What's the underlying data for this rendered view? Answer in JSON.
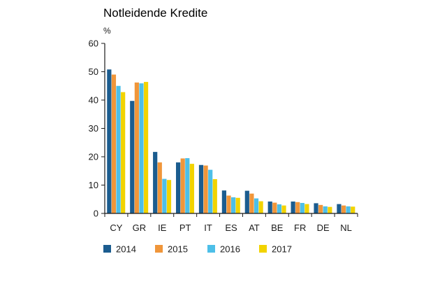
{
  "chart_data": {
    "type": "bar",
    "title": "Notleidende Kredite",
    "ylabel": "%",
    "xlabel": "",
    "ylim": [
      0,
      60
    ],
    "yticks": [
      0,
      10,
      20,
      30,
      40,
      50,
      60
    ],
    "grid": false,
    "legend_position": "bottom-left",
    "categories": [
      "CY",
      "GR",
      "IE",
      "PT",
      "IT",
      "ES",
      "AT",
      "BE",
      "FR",
      "DE",
      "NL"
    ],
    "series": [
      {
        "name": "2014",
        "color": "#1b5c8f",
        "values": [
          50.8,
          39.7,
          21.7,
          18.0,
          17.1,
          8.1,
          8.0,
          4.2,
          4.2,
          3.6,
          3.3
        ]
      },
      {
        "name": "2015",
        "color": "#f0963a",
        "values": [
          49.0,
          46.2,
          18.0,
          19.4,
          16.9,
          6.3,
          7.0,
          3.8,
          4.0,
          3.0,
          2.8
        ]
      },
      {
        "name": "2016",
        "color": "#4dbfe8",
        "values": [
          45.0,
          45.9,
          12.2,
          19.5,
          15.4,
          5.7,
          5.3,
          3.2,
          3.7,
          2.5,
          2.5
        ]
      },
      {
        "name": "2017",
        "color": "#f2d300",
        "values": [
          42.8,
          46.4,
          11.8,
          17.5,
          12.1,
          5.5,
          4.3,
          2.8,
          3.3,
          2.3,
          2.4
        ]
      }
    ]
  }
}
